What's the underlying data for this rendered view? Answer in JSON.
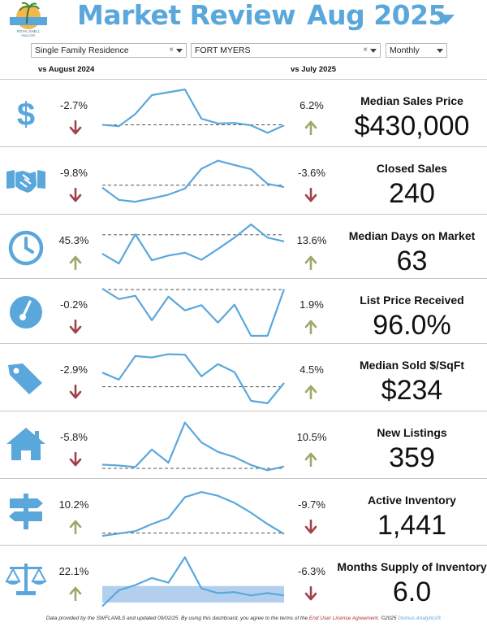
{
  "header": {
    "title_part1": "Market Review",
    "title_part2": "Aug 2025",
    "logo_icon": "palm-tree-sunset-logo",
    "logo_small_text": "ROYAL SHELL",
    "title_color": "#5aa7dc"
  },
  "filters": {
    "property_type": "Single Family Residence",
    "city": "FORT MYERS",
    "period": "Monthly",
    "clear_glyph": "×"
  },
  "columns": {
    "vs_year": "vs August 2024",
    "vs_month": "vs July 2025"
  },
  "colors": {
    "accent": "#5aa7dc",
    "down": "#a0424a",
    "up": "#9aaa6a",
    "band": "#aacbeb"
  },
  "metrics": [
    {
      "label": "Median Sales Price",
      "value": "$430,000",
      "icon": "dollar-sign-icon",
      "yoy": "-2.7%",
      "yoy_dir": "down",
      "mom": "6.2%",
      "mom_dir": "up",
      "trend": [
        0.25,
        0.22,
        0.48,
        0.88,
        0.94,
        1.0,
        0.38,
        0.28,
        0.29,
        0.24,
        0.08,
        0.24
      ],
      "baseline": 0.25
    },
    {
      "label": "Closed Sales",
      "value": "240",
      "icon": "handshake-icon",
      "yoy": "-9.8%",
      "yoy_dir": "down",
      "mom": "-3.6%",
      "mom_dir": "down",
      "trend": [
        0.35,
        0.09,
        0.05,
        0.12,
        0.2,
        0.33,
        0.75,
        0.92,
        0.83,
        0.74,
        0.43,
        0.36
      ],
      "baseline": 0.4
    },
    {
      "label": "Median Days on Market",
      "value": "63",
      "icon": "clock-icon",
      "yoy": "45.3%",
      "yoy_dir": "up",
      "mom": "13.6%",
      "mom_dir": "up",
      "trend": [
        0.38,
        0.17,
        0.79,
        0.24,
        0.34,
        0.4,
        0.25,
        0.48,
        0.72,
        1.0,
        0.72,
        0.64
      ],
      "baseline": 0.78
    },
    {
      "label": "List Price Received",
      "value": "96.0%",
      "icon": "gauge-icon",
      "yoy": "-0.2%",
      "yoy_dir": "down",
      "mom": "1.9%",
      "mom_dir": "up",
      "trend": [
        1.0,
        0.78,
        0.85,
        0.33,
        0.83,
        0.54,
        0.65,
        0.28,
        0.66,
        0.0,
        0.0,
        0.99
      ],
      "baseline": 0.98
    },
    {
      "label": "Median Sold $/SqFt",
      "value": "$234",
      "icon": "price-tag-icon",
      "yoy": "-2.9%",
      "yoy_dir": "down",
      "mom": "4.5%",
      "mom_dir": "up",
      "trend": [
        0.6,
        0.45,
        0.95,
        0.92,
        0.99,
        0.98,
        0.52,
        0.78,
        0.61,
        0.0,
        -0.05,
        0.38
      ],
      "baseline": 0.3
    },
    {
      "label": "New Listings",
      "value": "359",
      "icon": "house-icon",
      "yoy": "-5.8%",
      "yoy_dir": "down",
      "mom": "10.5%",
      "mom_dir": "up",
      "trend": [
        0.08,
        0.06,
        0.03,
        0.4,
        0.12,
        0.97,
        0.55,
        0.35,
        0.24,
        0.07,
        -0.04,
        0.04
      ],
      "baseline": 0.0
    },
    {
      "label": "Active Inventory",
      "value": "1,441",
      "icon": "signpost-icon",
      "yoy": "10.2%",
      "yoy_dir": "up",
      "mom": "-9.7%",
      "mom_dir": "down",
      "trend": [
        0.0,
        0.05,
        0.1,
        0.25,
        0.38,
        0.82,
        0.93,
        0.85,
        0.7,
        0.49,
        0.25,
        0.04
      ],
      "baseline": 0.06
    },
    {
      "label": "Months Supply of Inventory",
      "value": "6.0",
      "icon": "balance-scale-icon",
      "yoy": "22.1%",
      "yoy_dir": "up",
      "mom": "-6.3%",
      "mom_dir": "down",
      "trend": [
        -0.08,
        0.26,
        0.37,
        0.52,
        0.42,
        0.96,
        0.3,
        0.2,
        0.22,
        0.15,
        0.2,
        0.15
      ],
      "band": [
        0.0,
        0.35
      ]
    }
  ],
  "footer": {
    "text_before": "Data provided by the SWFLAMLS and updated 09/02/25.  By using this dashboard, you agree to the terms of the ",
    "link_text": "End User License Agreement",
    "text_after": ".  ©2025 ",
    "brand": "Domus Analytics®"
  }
}
